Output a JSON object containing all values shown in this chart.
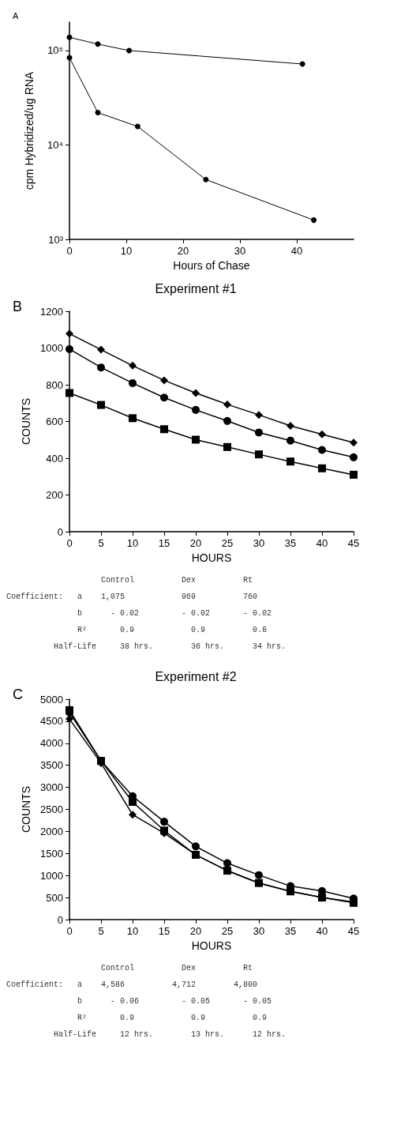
{
  "chart_data": [
    {
      "type": "line",
      "xlabel": "Hours of Chase",
      "ylabel": "cpm Hybridized/ug RNA",
      "log": "y",
      "marker": "circle",
      "annotations": [
        "A"
      ],
      "xlim": [
        0,
        50
      ],
      "xticks": [
        0,
        10,
        20,
        30,
        40
      ],
      "ylim": [
        1000,
        200000
      ],
      "yticks": [
        {
          "value": 1000,
          "label": "10³"
        },
        {
          "value": 10000,
          "label": "10⁴"
        },
        {
          "value": 100000,
          "label": "10⁵"
        }
      ],
      "grid": false,
      "series": [
        {
          "color": "#000000",
          "x": [
            0,
            5,
            10.5,
            41
          ],
          "values": [
            138000,
            117000,
            100000,
            72000
          ]
        },
        {
          "color": "#000000",
          "x": [
            0,
            5,
            12,
            24,
            43
          ],
          "values": [
            84000,
            22000,
            15700,
            4300,
            1600
          ]
        }
      ]
    },
    {
      "type": "line",
      "title": "Experiment #1",
      "xlabel": "HOURS",
      "ylabel": "COUNTS",
      "annotations": [
        "B",
        "                    Control          Dex          Rt",
        "Coefficient:   a    1,075            969          760",
        "               b      - 0.02         - 0.02       - 0.02",
        "               R²       0.9            0.9          0.8",
        "          Half-Life     38 hrs.        36 hrs.      34 hrs."
      ],
      "x": [
        0,
        5,
        10,
        15,
        20,
        25,
        30,
        35,
        40,
        45
      ],
      "xlim": [
        0,
        45
      ],
      "xticks": [
        0,
        5,
        10,
        15,
        20,
        25,
        30,
        35,
        40,
        45
      ],
      "ylim": [
        0,
        1200
      ],
      "yticks": [
        0,
        200,
        400,
        600,
        800,
        1000,
        1200
      ],
      "grid": false,
      "series": [
        {
          "color": "#000000",
          "marker": "diamond",
          "values": [
            1078,
            991,
            904,
            824,
            755,
            693,
            636,
            576,
            530,
            485
          ]
        },
        {
          "color": "#000000",
          "marker": "circle",
          "values": [
            994,
            894,
            809,
            730,
            663,
            603,
            540,
            496,
            445,
            405
          ]
        },
        {
          "color": "#000000",
          "marker": "square",
          "values": [
            755,
            690,
            618,
            558,
            501,
            461,
            421,
            382,
            345,
            310
          ]
        }
      ]
    },
    {
      "type": "line",
      "title": "Experiment #2",
      "xlabel": "HOURS",
      "ylabel": "COUNTS",
      "annotations": [
        "C",
        "                    Control          Dex          Rt",
        "Coefficient:   a    4,586          4,712        4,800",
        "               b      - 0.06         - 0.05       - 0.05",
        "               R²       0.9            0.9          0.9",
        "          Half-Life     12 hrs.        13 hrs.      12 hrs."
      ],
      "x": [
        0,
        5,
        10,
        15,
        20,
        25,
        30,
        35,
        40,
        45
      ],
      "xlim": [
        0,
        45
      ],
      "xticks": [
        0,
        5,
        10,
        15,
        20,
        25,
        30,
        35,
        40,
        45
      ],
      "ylim": [
        0,
        5000
      ],
      "yticks": [
        0,
        500,
        1000,
        1500,
        2000,
        2500,
        3000,
        3500,
        4000,
        4500,
        5000
      ],
      "grid": false,
      "series": [
        {
          "color": "#000000",
          "marker": "diamond",
          "values": [
            4550,
            3550,
            2380,
            1960,
            1470,
            1110,
            830,
            640,
            500,
            400
          ]
        },
        {
          "color": "#000000",
          "marker": "circle",
          "values": [
            4700,
            3600,
            2800,
            2220,
            1660,
            1280,
            1010,
            760,
            650,
            480
          ]
        },
        {
          "color": "#000000",
          "marker": "square",
          "values": [
            4750,
            3600,
            2670,
            2020,
            1470,
            1110,
            830,
            640,
            500,
            380
          ]
        }
      ]
    }
  ]
}
